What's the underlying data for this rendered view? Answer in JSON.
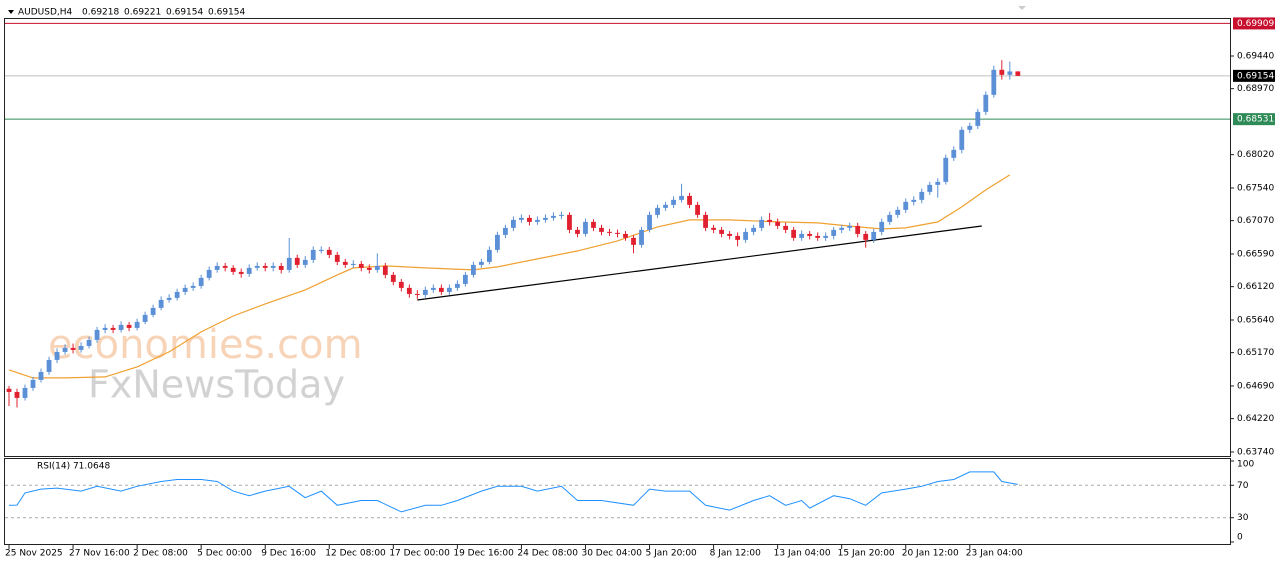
{
  "chart_data": [
    {
      "type": "candlestick",
      "title": "AUDUSD,H4",
      "bull_color": "#5b8fd6",
      "bear_color": "#e0202f",
      "xlim": [
        -0.5,
        152.5
      ],
      "xticks": [
        {
          "value": 0,
          "label": "25 Nov 2025"
        },
        {
          "value": 8,
          "label": "27 Nov 16:00"
        },
        {
          "value": 16,
          "label": "2 Dec 08:00"
        },
        {
          "value": 24,
          "label": "5 Dec 00:00"
        },
        {
          "value": 32,
          "label": "9 Dec 16:00"
        },
        {
          "value": 40,
          "label": "12 Dec 08:00"
        },
        {
          "value": 48,
          "label": "17 Dec 00:00"
        },
        {
          "value": 56,
          "label": "19 Dec 16:00"
        },
        {
          "value": 64,
          "label": "24 Dec 08:00"
        },
        {
          "value": 72,
          "label": "30 Dec 04:00"
        },
        {
          "value": 80,
          "label": "5 Jan 20:00"
        },
        {
          "value": 88,
          "label": "8 Jan 12:00"
        },
        {
          "value": 96,
          "label": "13 Jan 04:00"
        },
        {
          "value": 104,
          "label": "15 Jan 20:00"
        },
        {
          "value": 112,
          "label": "20 Jan 12:00"
        },
        {
          "value": 120,
          "label": "23 Jan 04:00"
        }
      ],
      "ylim": [
        0.63682,
        0.69987
      ],
      "yticks": [
        {
          "value": 0.6944,
          "label": "0.69440"
        },
        {
          "value": 0.6897,
          "label": "0.68970"
        },
        {
          "value": 0.6802,
          "label": "0.68020"
        },
        {
          "value": 0.6754,
          "label": "0.67540"
        },
        {
          "value": 0.6707,
          "label": "0.67070"
        },
        {
          "value": 0.6659,
          "label": "0.66590"
        },
        {
          "value": 0.6612,
          "label": "0.66120"
        },
        {
          "value": 0.6564,
          "label": "0.65640"
        },
        {
          "value": 0.6517,
          "label": "0.65170"
        },
        {
          "value": 0.6469,
          "label": "0.64690"
        },
        {
          "value": 0.6422,
          "label": "0.64220"
        },
        {
          "value": 0.6374,
          "label": "0.63740"
        }
      ],
      "open": [
        0.6465,
        0.64604,
        0.64518,
        0.64662,
        0.64777,
        0.64892,
        0.65065,
        0.6518,
        0.65238,
        0.65209,
        0.65266,
        0.65353,
        0.65497,
        0.65526,
        0.65497,
        0.65569,
        0.65526,
        0.65612,
        0.65713,
        0.65814,
        0.65929,
        0.65958,
        0.66044,
        0.66102,
        0.6613,
        0.66246,
        0.66361,
        0.66418,
        0.6639,
        0.66332,
        0.66303,
        0.6639,
        0.66418,
        0.6639,
        0.66418,
        0.66361,
        0.66534,
        0.66433,
        0.66505,
        0.66649,
        0.66649,
        0.66577,
        0.66476,
        0.66433,
        0.66447,
        0.6639,
        0.66361,
        0.66418,
        0.66289,
        0.66188,
        0.66102,
        0.66015,
        0.66001,
        0.66073,
        0.66102,
        0.66044,
        0.66102,
        0.66159,
        0.66289,
        0.66433,
        0.66476,
        0.66649,
        0.66865,
        0.66966,
        0.67081,
        0.6711,
        0.67052,
        0.67081,
        0.6711,
        0.67138,
        0.67153,
        0.66937,
        0.66879,
        0.67052,
        0.66966,
        0.66908,
        0.66894,
        0.66879,
        0.66822,
        0.66721,
        0.66937,
        0.67153,
        0.67254,
        0.67297,
        0.67369,
        0.67426,
        0.67297,
        0.67153,
        0.66966,
        0.66937,
        0.66879,
        0.6685,
        0.66793,
        0.66908,
        0.66966,
        0.67081,
        0.67052,
        0.66994,
        0.66937,
        0.66822,
        0.66879,
        0.6685,
        0.66822,
        0.6685,
        0.66937,
        0.66966,
        0.66994,
        0.66879,
        0.66793,
        0.66908,
        0.67052,
        0.67153,
        0.67225,
        0.6734,
        0.67369,
        0.67484,
        0.67585,
        0.67628,
        0.67974,
        0.68089,
        0.68377,
        0.68434,
        0.68636,
        0.68881,
        0.69241,
        0.69169,
        0.69218
      ],
      "high": [
        0.6469,
        0.6465,
        0.6471,
        0.6482,
        0.6494,
        0.6511,
        0.6523,
        0.6529,
        0.653,
        0.6532,
        0.654,
        0.6554,
        0.6558,
        0.6557,
        0.6562,
        0.6561,
        0.6566,
        0.6576,
        0.6586,
        0.6598,
        0.6601,
        0.6609,
        0.6615,
        0.6618,
        0.6629,
        0.6641,
        0.6647,
        0.6646,
        0.6643,
        0.6638,
        0.6644,
        0.6647,
        0.6646,
        0.6647,
        0.6646,
        0.6682,
        0.6658,
        0.6656,
        0.667,
        0.667,
        0.6669,
        0.6662,
        0.6652,
        0.665,
        0.6649,
        0.6644,
        0.666,
        0.6646,
        0.6633,
        0.6623,
        0.6615,
        0.6607,
        0.6612,
        0.6615,
        0.6615,
        0.6615,
        0.6621,
        0.6633,
        0.6648,
        0.6652,
        0.667,
        0.6691,
        0.6701,
        0.6713,
        0.6716,
        0.6715,
        0.6713,
        0.6716,
        0.6719,
        0.672,
        0.6719,
        0.6698,
        0.671,
        0.6709,
        0.6701,
        0.6695,
        0.6694,
        0.6692,
        0.6686,
        0.6698,
        0.672,
        0.673,
        0.6734,
        0.6742,
        0.676,
        0.6747,
        0.6734,
        0.672,
        0.6701,
        0.6698,
        0.6692,
        0.669,
        0.6696,
        0.6701,
        0.6713,
        0.6718,
        0.671,
        0.6704,
        0.6698,
        0.6693,
        0.6692,
        0.669,
        0.669,
        0.6698,
        0.6701,
        0.6704,
        0.6704,
        0.6692,
        0.6695,
        0.671,
        0.672,
        0.6727,
        0.6739,
        0.6742,
        0.6753,
        0.6763,
        0.6768,
        0.6802,
        0.6814,
        0.6842,
        0.6848,
        0.6868,
        0.6893,
        0.693,
        0.6938,
        0.6936,
        0.69221
      ],
      "low": [
        0.644,
        0.6438,
        0.6448,
        0.6462,
        0.6474,
        0.6485,
        0.6502,
        0.6514,
        0.6516,
        0.6517,
        0.6523,
        0.6531,
        0.6545,
        0.6545,
        0.6546,
        0.6548,
        0.6549,
        0.6558,
        0.6568,
        0.6578,
        0.6589,
        0.6592,
        0.66,
        0.6606,
        0.6609,
        0.6621,
        0.6632,
        0.6634,
        0.6629,
        0.6625,
        0.6626,
        0.6635,
        0.6634,
        0.6634,
        0.6631,
        0.6632,
        0.6639,
        0.6639,
        0.6646,
        0.666,
        0.6653,
        0.6643,
        0.6639,
        0.6639,
        0.6634,
        0.6631,
        0.6632,
        0.6624,
        0.6614,
        0.6605,
        0.6596,
        0.6594,
        0.6596,
        0.6603,
        0.66,
        0.66,
        0.6606,
        0.6612,
        0.6625,
        0.6639,
        0.6644,
        0.6661,
        0.6682,
        0.6692,
        0.6704,
        0.67,
        0.6701,
        0.6704,
        0.6707,
        0.6709,
        0.6689,
        0.6683,
        0.6684,
        0.6692,
        0.6686,
        0.6685,
        0.6683,
        0.6678,
        0.666,
        0.6668,
        0.669,
        0.6711,
        0.6721,
        0.6725,
        0.6733,
        0.6725,
        0.6711,
        0.6692,
        0.6689,
        0.6683,
        0.668,
        0.667,
        0.6675,
        0.6686,
        0.6692,
        0.67,
        0.6695,
        0.6689,
        0.6678,
        0.6678,
        0.668,
        0.6678,
        0.6678,
        0.668,
        0.6689,
        0.6692,
        0.6683,
        0.6668,
        0.6675,
        0.6686,
        0.6701,
        0.6711,
        0.6718,
        0.6729,
        0.6732,
        0.6744,
        0.674,
        0.6759,
        0.6793,
        0.6804,
        0.6833,
        0.6839,
        0.6859,
        0.6884,
        0.691,
        0.691,
        0.69154
      ],
      "close": [
        0.64604,
        0.64518,
        0.64662,
        0.64777,
        0.64892,
        0.65065,
        0.6518,
        0.65238,
        0.65209,
        0.65266,
        0.65353,
        0.65497,
        0.65526,
        0.65497,
        0.65569,
        0.65526,
        0.65612,
        0.65713,
        0.65814,
        0.65929,
        0.65958,
        0.66044,
        0.66102,
        0.6613,
        0.66246,
        0.66361,
        0.66418,
        0.6639,
        0.66332,
        0.66303,
        0.6639,
        0.66418,
        0.6639,
        0.66418,
        0.66361,
        0.66534,
        0.66433,
        0.66505,
        0.66649,
        0.66649,
        0.66577,
        0.66476,
        0.66433,
        0.66447,
        0.6639,
        0.66361,
        0.66418,
        0.66289,
        0.66188,
        0.66102,
        0.66015,
        0.66001,
        0.66073,
        0.66102,
        0.66044,
        0.66102,
        0.66159,
        0.66289,
        0.66433,
        0.66476,
        0.66649,
        0.66865,
        0.66966,
        0.67081,
        0.6711,
        0.67052,
        0.67081,
        0.6711,
        0.67138,
        0.67153,
        0.66937,
        0.66879,
        0.67052,
        0.66966,
        0.66908,
        0.66894,
        0.66879,
        0.66822,
        0.66721,
        0.66937,
        0.67153,
        0.67254,
        0.67297,
        0.67369,
        0.67426,
        0.67297,
        0.67153,
        0.66966,
        0.66937,
        0.66879,
        0.6685,
        0.66793,
        0.66908,
        0.66966,
        0.67081,
        0.67052,
        0.66994,
        0.66937,
        0.66822,
        0.66879,
        0.6685,
        0.66822,
        0.6685,
        0.66937,
        0.66966,
        0.66994,
        0.66879,
        0.66793,
        0.66908,
        0.67052,
        0.67153,
        0.67225,
        0.6734,
        0.67369,
        0.67484,
        0.67585,
        0.67628,
        0.67974,
        0.68089,
        0.68377,
        0.68434,
        0.68636,
        0.68881,
        0.69241,
        0.69169,
        0.69218,
        0.69154
      ],
      "ma": {
        "color": "#f0a030",
        "x": [
          0,
          3,
          7,
          12,
          16,
          20,
          24,
          28,
          32,
          37,
          41,
          43,
          47,
          52,
          58,
          61,
          66,
          71,
          76,
          81,
          85,
          90,
          96,
          101,
          106,
          109,
          112,
          116,
          119,
          122,
          125
        ],
        "values": [
          0.64921,
          0.64806,
          0.64806,
          0.6482,
          0.64964,
          0.6518,
          0.65468,
          0.65698,
          0.65871,
          0.66073,
          0.66289,
          0.6639,
          0.66418,
          0.6639,
          0.66361,
          0.66404,
          0.66519,
          0.66634,
          0.66778,
          0.6698,
          0.67081,
          0.67081,
          0.67052,
          0.67038,
          0.6698,
          0.66951,
          0.66966,
          0.67052,
          0.67268,
          0.67513,
          0.67729
        ]
      },
      "trendline": {
        "color": "#000000",
        "x": [
          51,
          121.5
        ],
        "values": [
          0.65928,
          0.66993
        ]
      },
      "levels": [
        {
          "value": 0.69909,
          "color": "#c8102e",
          "label_color": "#c8102e"
        },
        {
          "value": 0.69154,
          "color": "#c0c0c0",
          "label_color": "#000000"
        },
        {
          "value": 0.68531,
          "color": "#2e8b57",
          "label_color": "#2e8b57"
        }
      ],
      "watermark": [
        "economies.com",
        "FxNewsToday"
      ]
    },
    {
      "type": "line",
      "title": "RSI(14) 71.0648",
      "color": "#1e90ff",
      "grid_dashed": true,
      "xlim": [
        -0.5,
        152.5
      ],
      "ylim": [
        0,
        100
      ],
      "yticks": [
        100,
        70,
        30,
        0
      ],
      "x": [
        0,
        1,
        2,
        4,
        6,
        9,
        11,
        14,
        16,
        19,
        21,
        24,
        26,
        28,
        30,
        32,
        35,
        37,
        39,
        41,
        44,
        46,
        49,
        52,
        54,
        56,
        59,
        61,
        64,
        66,
        69,
        71,
        74,
        78,
        80,
        82,
        85,
        87,
        90,
        93,
        95,
        97,
        99,
        100,
        103,
        105,
        107,
        109,
        112,
        114,
        116,
        118,
        120,
        122,
        123,
        124,
        126
      ],
      "values": [
        45.3,
        45.5,
        60.6,
        65.3,
        66.5,
        62.9,
        68.8,
        62.9,
        68.8,
        74.7,
        77.1,
        77.1,
        74.7,
        62.9,
        57.1,
        62.9,
        68.8,
        54.7,
        62.9,
        45.3,
        51.2,
        51.2,
        37.1,
        45.3,
        45.3,
        51.2,
        62.9,
        68.8,
        68.8,
        62.9,
        68.8,
        51.2,
        51.2,
        45.3,
        65.3,
        62.9,
        62.9,
        45.3,
        39.4,
        51.2,
        57.1,
        45.3,
        51.2,
        41.8,
        57.1,
        53.5,
        45.3,
        60.6,
        65.3,
        68.8,
        74.7,
        77.1,
        86.5,
        86.5,
        86.5,
        74.7,
        71.0648
      ]
    }
  ]
}
